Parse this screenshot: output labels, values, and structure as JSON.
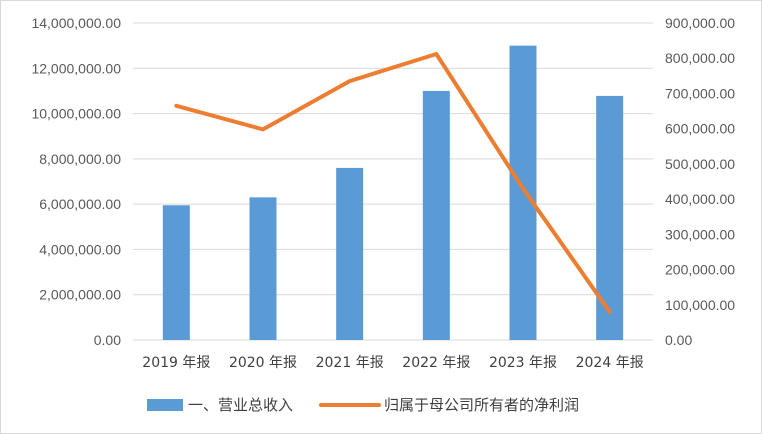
{
  "chart_data": {
    "type": "bar",
    "categories": [
      "2019 年报",
      "2020 年报",
      "2021 年报",
      "2022 年报",
      "2023 年报",
      "2024 年报"
    ],
    "series": [
      {
        "name": "一、营业总收入",
        "type": "bar",
        "axis": "left",
        "color": "#5b9bd5",
        "values": [
          5950000,
          6300000,
          7600000,
          11000000,
          13000000,
          10780000
        ]
      },
      {
        "name": "归属于母公司所有者的净利润",
        "type": "line",
        "axis": "right",
        "color": "#ed7d31",
        "values": [
          665000,
          598000,
          735000,
          812000,
          430000,
          80000
        ]
      }
    ],
    "y_left": {
      "ylim": [
        0,
        14000000
      ],
      "ticks": [
        "0.00",
        "2,000,000.00",
        "4,000,000.00",
        "6,000,000.00",
        "8,000,000.00",
        "10,000,000.00",
        "12,000,000.00",
        "14,000,000.00"
      ]
    },
    "y_right": {
      "ylim": [
        0,
        900000
      ],
      "ticks": [
        "0.00",
        "100,000.00",
        "200,000.00",
        "300,000.00",
        "400,000.00",
        "500,000.00",
        "600,000.00",
        "700,000.00",
        "800,000.00",
        "900,000.00"
      ]
    },
    "grid": true,
    "legend_position": "bottom"
  }
}
